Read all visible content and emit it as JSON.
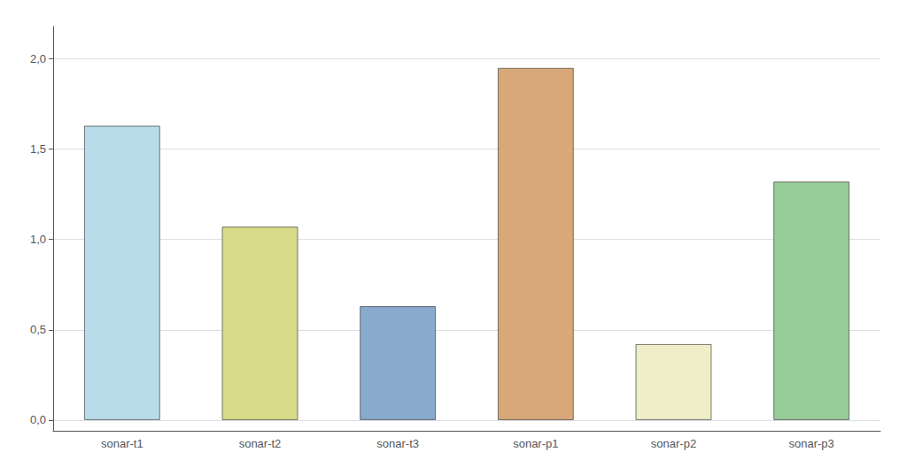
{
  "chart_data": {
    "type": "bar",
    "categories": [
      "sonar-t1",
      "sonar-t2",
      "sonar-t3",
      "sonar-p1",
      "sonar-p2",
      "sonar-p3"
    ],
    "values": [
      1.63,
      1.07,
      0.63,
      1.95,
      0.42,
      1.32
    ],
    "colors": [
      "#b8dce8",
      "#d8dc88",
      "#88aacc",
      "#d8a878",
      "#eeeec8",
      "#98cc98"
    ],
    "ylim": [
      -0.06,
      2.18
    ],
    "yticks": [
      {
        "value": 0.0,
        "label": "0,0"
      },
      {
        "value": 0.5,
        "label": "0,5"
      },
      {
        "value": 1.0,
        "label": "1,0"
      },
      {
        "value": 1.5,
        "label": "1,5"
      },
      {
        "value": 2.0,
        "label": "2,0"
      }
    ],
    "grid": true
  }
}
